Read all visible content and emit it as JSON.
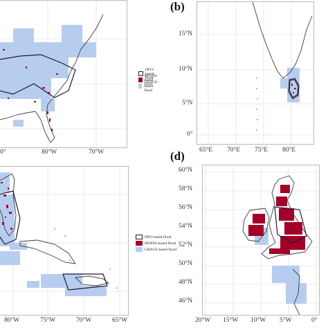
{
  "panels": {
    "b": {
      "label": "(b)"
    },
    "d": {
      "label": "(d)"
    }
  },
  "legend": {
    "items": [
      {
        "label": "DFO-based flood",
        "color": "#ffffff",
        "border": "#1a1a3a"
      },
      {
        "label": "MODIS-based flood",
        "color": "#a3002a",
        "border": "#a3002a"
      },
      {
        "label": "GRACE-based flood",
        "color": "#b7cdef",
        "border": "#b7cdef"
      }
    ]
  },
  "panel_a": {
    "x_ticks": [
      "0°",
      "80°W",
      "70°W"
    ]
  },
  "panel_b": {
    "x_ticks": [
      "65°E",
      "70°E",
      "75°E",
      "80°E"
    ],
    "y_ticks": [
      "15°N",
      "10°N",
      "5°N",
      "0°"
    ]
  },
  "panel_c": {
    "x_ticks": [
      "80°W",
      "75°W",
      "70°W",
      "65°W"
    ]
  },
  "panel_d": {
    "x_ticks": [
      "20°W",
      "15°W",
      "10°W",
      "5°W",
      "0°"
    ],
    "y_ticks": [
      "60°N",
      "58°N",
      "56°N",
      "54°N",
      "52°N",
      "50°N",
      "48°N",
      "46°N"
    ]
  },
  "colors": {
    "grace": "#b7cdef",
    "modis": "#a3002a",
    "dfo": "#1a1a3a",
    "coast": "#3a3a3a",
    "grid": "#e4e4e4"
  }
}
